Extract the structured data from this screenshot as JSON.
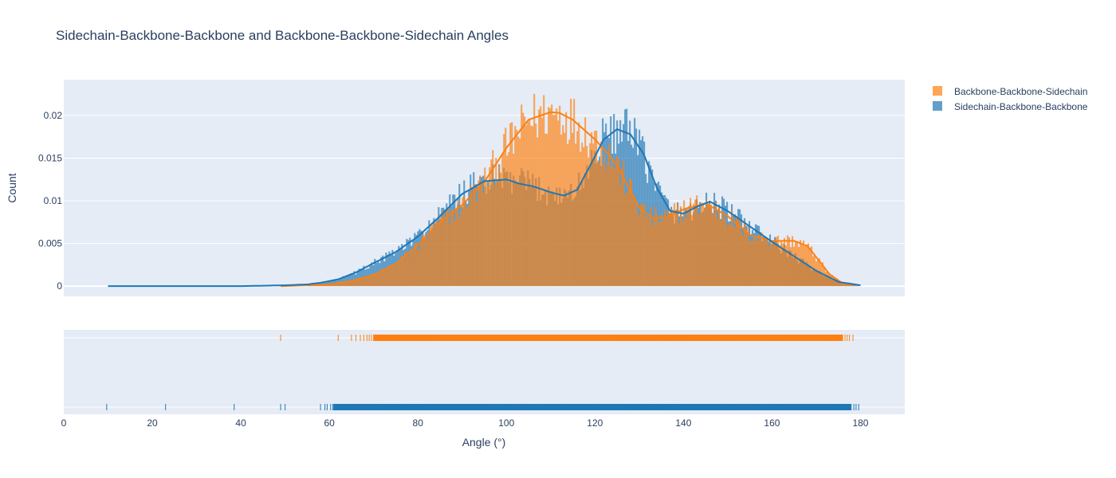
{
  "chart_data": {
    "type": "histogram",
    "title": "Sidechain-Backbone-Backbone and Backbone-Backbone-Sidechain Angles",
    "xlabel": "Angle (°)",
    "ylabel": "Count",
    "xlim": [
      0,
      190
    ],
    "ylim": [
      -0.0012,
      0.0242
    ],
    "x_ticks": [
      0,
      20,
      40,
      60,
      80,
      100,
      120,
      140,
      160,
      180
    ],
    "y_ticks": [
      0,
      0.005,
      0.01,
      0.015,
      0.02
    ],
    "y_tick_labels": [
      "0",
      "0.005",
      "0.01",
      "0.015",
      "0.02"
    ],
    "grid": true,
    "legend_position": "top-right",
    "series": [
      {
        "name": "Backbone-Backbone-Sidechain",
        "color": "#ff7f0e",
        "histogram_opacity": 0.7,
        "data_range": [
          49,
          178.5
        ],
        "kde_x": [
          49,
          60,
          65,
          70,
          75,
          80,
          85,
          90,
          95,
          100,
          105,
          110,
          112,
          115,
          120,
          123,
          125,
          128,
          130,
          133,
          136,
          140,
          145,
          150,
          155,
          160,
          165,
          168,
          170,
          173,
          176,
          180
        ],
        "kde_y": [
          0,
          0.0002,
          0.0006,
          0.0013,
          0.0026,
          0.0048,
          0.0075,
          0.0095,
          0.0122,
          0.0162,
          0.0195,
          0.0204,
          0.0203,
          0.0195,
          0.0172,
          0.0155,
          0.0142,
          0.0112,
          0.0092,
          0.008,
          0.008,
          0.009,
          0.0097,
          0.0082,
          0.006,
          0.0053,
          0.0053,
          0.0047,
          0.0034,
          0.0014,
          0.0003,
          0.0001
        ],
        "rug_sparse": [
          49,
          62,
          65,
          66,
          67,
          67.8,
          68.5,
          69,
          69.5,
          70.2
        ],
        "rug_dense_range": [
          70,
          176
        ],
        "rug_tail": [
          176.5,
          177,
          177.5,
          178.3
        ]
      },
      {
        "name": "Sidechain-Backbone-Backbone",
        "color": "#1f77b4",
        "histogram_opacity": 0.7,
        "data_range": [
          9.5,
          179.5
        ],
        "kde_x": [
          10,
          40,
          50,
          55,
          58,
          62,
          66,
          70,
          75,
          80,
          85,
          90,
          95,
          100,
          103,
          106,
          110,
          113,
          116,
          119,
          122,
          125,
          128,
          131,
          134,
          137,
          140,
          143,
          146,
          150,
          155,
          160,
          165,
          170,
          175,
          180
        ],
        "kde_y": [
          0,
          0,
          0.0001,
          0.0002,
          0.0004,
          0.0008,
          0.0016,
          0.0027,
          0.004,
          0.0058,
          0.0082,
          0.0108,
          0.0123,
          0.0125,
          0.012,
          0.0117,
          0.011,
          0.0106,
          0.0113,
          0.0142,
          0.0172,
          0.0184,
          0.0178,
          0.0155,
          0.0115,
          0.0088,
          0.0085,
          0.0093,
          0.0099,
          0.0088,
          0.007,
          0.0052,
          0.0035,
          0.0018,
          0.0005,
          0.0001
        ],
        "rug_sparse": [
          9.7,
          23,
          38.5,
          49,
          50,
          58,
          59,
          59.5,
          60.3,
          60.8
        ],
        "rug_dense_range": [
          61,
          178
        ],
        "rug_tail": [
          178.5,
          179,
          179.6
        ]
      }
    ]
  }
}
